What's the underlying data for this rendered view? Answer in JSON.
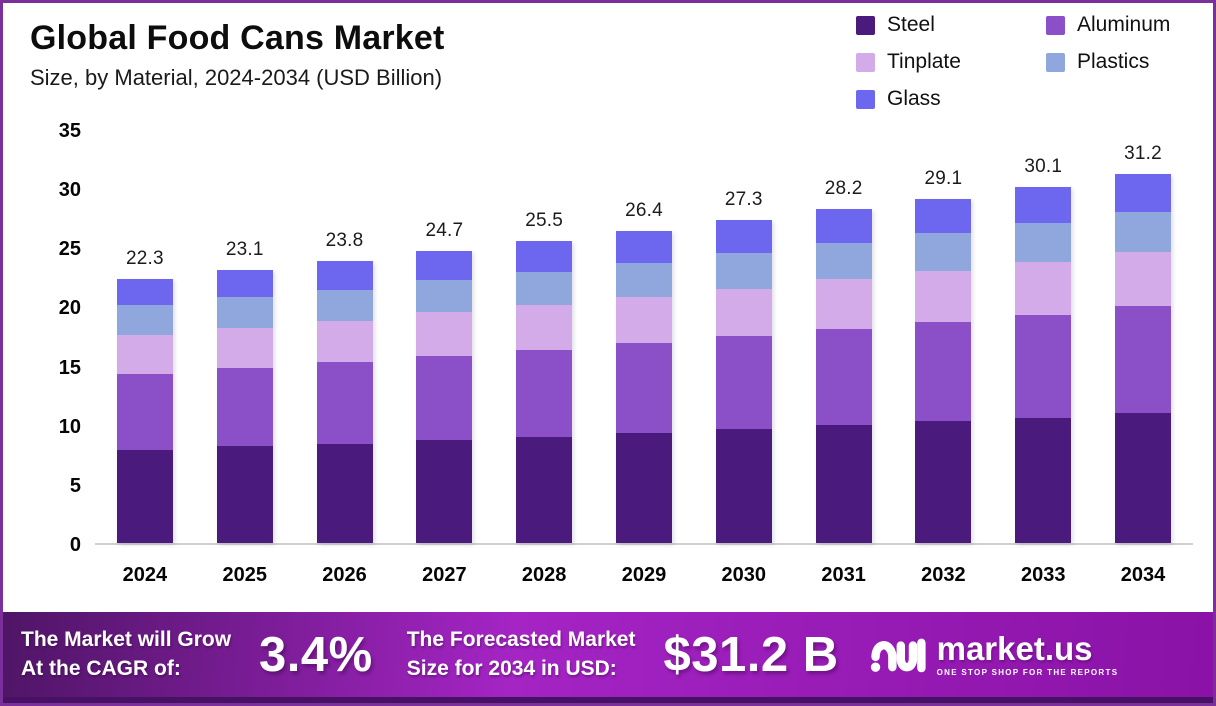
{
  "header": {
    "title": "Global Food Cans Market",
    "subtitle": "Size, by Material, 2024-2034 (USD Billion)"
  },
  "chart_data": {
    "type": "bar",
    "stacked": true,
    "title": "Global Food Cans Market Size, by Material, 2024-2034 (USD Billion)",
    "categories": [
      "2024",
      "2025",
      "2026",
      "2027",
      "2028",
      "2029",
      "2030",
      "2031",
      "2032",
      "2033",
      "2034"
    ],
    "series": [
      {
        "name": "Steel",
        "color": "#4a1a7c",
        "values": [
          7.9,
          8.2,
          8.4,
          8.7,
          9.0,
          9.3,
          9.6,
          10.0,
          10.3,
          10.6,
          11.0
        ]
      },
      {
        "name": "Aluminum",
        "color": "#8b4fc8",
        "values": [
          6.4,
          6.6,
          6.9,
          7.1,
          7.3,
          7.6,
          7.9,
          8.1,
          8.4,
          8.7,
          9.0
        ]
      },
      {
        "name": "Tinplate",
        "color": "#d4abe9",
        "values": [
          3.3,
          3.4,
          3.5,
          3.7,
          3.8,
          3.9,
          4.0,
          4.2,
          4.3,
          4.5,
          4.6
        ]
      },
      {
        "name": "Plastics",
        "color": "#8fa7dc",
        "values": [
          2.5,
          2.6,
          2.6,
          2.7,
          2.8,
          2.9,
          3.0,
          3.1,
          3.2,
          3.3,
          3.4
        ]
      },
      {
        "name": "Glass",
        "color": "#6d66ef",
        "values": [
          2.2,
          2.3,
          2.4,
          2.5,
          2.6,
          2.7,
          2.8,
          2.8,
          2.9,
          3.0,
          3.2
        ]
      }
    ],
    "totals": [
      22.3,
      23.1,
      23.8,
      24.7,
      25.5,
      26.4,
      27.3,
      28.2,
      29.1,
      30.1,
      31.2
    ],
    "xlabel": "",
    "ylabel": "",
    "ylim": [
      0,
      35
    ],
    "yticks": [
      0,
      5,
      10,
      15,
      20,
      25,
      30,
      35
    ],
    "grid": false,
    "legend_position": "top-right"
  },
  "footer": {
    "cagr_label_line1": "The Market will Grow",
    "cagr_label_line2": "At the CAGR of:",
    "cagr_value": "3.4%",
    "forecast_label_line1": "The Forecasted Market",
    "forecast_label_line2": "Size for 2034 in USD:",
    "forecast_value": "$31.2 B",
    "brand": {
      "name": "market.us",
      "tagline": "ONE STOP SHOP FOR THE REPORTS"
    }
  },
  "colors": {
    "page_border": "#7b2f9a",
    "footer_gradient_left": "#4f1566",
    "footer_gradient_mid": "#a424c4",
    "footer_gradient_right": "#8a12a6",
    "bottom_strip": "#471264",
    "axis_line": "#d0d0d0"
  }
}
